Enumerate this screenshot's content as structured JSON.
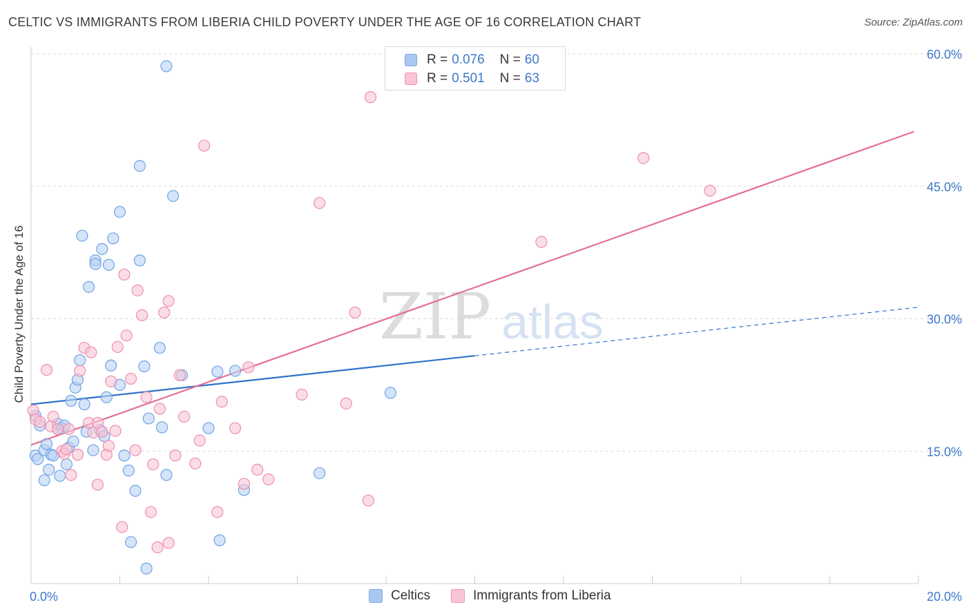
{
  "title": "CELTIC VS IMMIGRANTS FROM LIBERIA CHILD POVERTY UNDER THE AGE OF 16 CORRELATION CHART",
  "source": "Source: ZipAtlas.com",
  "watermark": {
    "part1": "ZIP",
    "part2": "atlas"
  },
  "legend_top": [
    {
      "r_label": "R =",
      "r_value": "0.076",
      "n_label": "N =",
      "n_value": "60",
      "color": "#a9c8f0",
      "border": "#7aaae6"
    },
    {
      "r_label": "R =",
      "r_value": "0.501",
      "n_label": "N =",
      "n_value": "63",
      "color": "#f9c4d4",
      "border": "#ee93b0"
    }
  ],
  "legend_bottom": [
    "Celtics",
    "Immigrants from Liberia"
  ],
  "chart_data": {
    "type": "scatter",
    "xlabel": "",
    "ylabel": "Child Poverty Under the Age of 16",
    "xlim": [
      0,
      20
    ],
    "ylim": [
      0,
      60
    ],
    "x_tick_labels": [
      {
        "value": 0,
        "label": "0.0%"
      },
      {
        "value": 20,
        "label": "20.0%"
      }
    ],
    "y_tick_labels": [
      {
        "value": 15,
        "label": "15.0%"
      },
      {
        "value": 30,
        "label": "30.0%"
      },
      {
        "value": 45,
        "label": "45.0%"
      },
      {
        "value": 60,
        "label": "60.0%"
      }
    ],
    "grid": "horizontal dashed",
    "series": [
      {
        "name": "Celtics",
        "color": "#6fa3e4",
        "fill": "#b9d2f3",
        "trend": {
          "x0": 0,
          "y0": 20.3,
          "x1": 10,
          "y1": 25.8,
          "dashed_to_x": 20,
          "dashed_to_y": 31.3,
          "color": "#2f72cc"
        },
        "points": [
          [
            0.1,
            19.0
          ],
          [
            0.1,
            14.5
          ],
          [
            0.15,
            14.1
          ],
          [
            0.2,
            17.9
          ],
          [
            0.3,
            15.1
          ],
          [
            0.3,
            11.7
          ],
          [
            0.35,
            15.8
          ],
          [
            0.4,
            12.9
          ],
          [
            0.45,
            14.6
          ],
          [
            0.5,
            14.5
          ],
          [
            0.6,
            17.5
          ],
          [
            0.6,
            18.1
          ],
          [
            0.65,
            12.2
          ],
          [
            0.7,
            17.6
          ],
          [
            0.75,
            17.9
          ],
          [
            0.8,
            13.5
          ],
          [
            0.85,
            15.4
          ],
          [
            0.9,
            20.7
          ],
          [
            0.95,
            16.1
          ],
          [
            1.0,
            22.2
          ],
          [
            1.05,
            23.1
          ],
          [
            1.1,
            25.3
          ],
          [
            1.15,
            39.4
          ],
          [
            1.2,
            20.3
          ],
          [
            1.25,
            17.2
          ],
          [
            1.3,
            33.6
          ],
          [
            1.4,
            15.1
          ],
          [
            1.45,
            36.6
          ],
          [
            1.45,
            36.2
          ],
          [
            1.55,
            17.4
          ],
          [
            1.6,
            37.9
          ],
          [
            1.65,
            16.7
          ],
          [
            1.7,
            21.1
          ],
          [
            1.75,
            36.1
          ],
          [
            1.8,
            24.7
          ],
          [
            1.85,
            39.1
          ],
          [
            2.0,
            42.1
          ],
          [
            2.0,
            22.5
          ],
          [
            2.1,
            14.5
          ],
          [
            2.2,
            12.8
          ],
          [
            2.25,
            4.7
          ],
          [
            2.35,
            10.5
          ],
          [
            2.45,
            47.3
          ],
          [
            2.45,
            36.6
          ],
          [
            2.55,
            24.6
          ],
          [
            2.6,
            1.7
          ],
          [
            2.65,
            18.7
          ],
          [
            2.9,
            26.7
          ],
          [
            2.95,
            17.7
          ],
          [
            3.05,
            12.3
          ],
          [
            3.05,
            58.6
          ],
          [
            3.2,
            43.9
          ],
          [
            3.4,
            23.6
          ],
          [
            4.0,
            17.6
          ],
          [
            4.2,
            24.0
          ],
          [
            4.25,
            4.9
          ],
          [
            4.6,
            24.1
          ],
          [
            4.8,
            10.6
          ],
          [
            6.5,
            12.5
          ],
          [
            8.1,
            21.6
          ]
        ]
      },
      {
        "name": "Immigrants from Liberia",
        "color": "#ee8db0",
        "fill": "#f8c6d6",
        "trend": {
          "x0": 0,
          "y0": 15.7,
          "x1": 19.9,
          "y1": 51.2,
          "color": "#e46c96"
        },
        "points": [
          [
            0.05,
            19.6
          ],
          [
            0.1,
            18.6
          ],
          [
            0.2,
            18.3
          ],
          [
            0.35,
            24.2
          ],
          [
            0.45,
            17.8
          ],
          [
            0.5,
            18.9
          ],
          [
            0.6,
            17.5
          ],
          [
            0.7,
            15.0
          ],
          [
            0.75,
            14.7
          ],
          [
            0.85,
            17.5
          ],
          [
            0.9,
            12.3
          ],
          [
            1.05,
            14.6
          ],
          [
            1.1,
            24.1
          ],
          [
            1.2,
            26.7
          ],
          [
            1.3,
            18.2
          ],
          [
            1.35,
            26.2
          ],
          [
            1.4,
            17.1
          ],
          [
            1.5,
            18.2
          ],
          [
            1.5,
            11.2
          ],
          [
            1.6,
            17.2
          ],
          [
            1.7,
            14.6
          ],
          [
            1.75,
            15.6
          ],
          [
            1.8,
            22.9
          ],
          [
            1.9,
            17.3
          ],
          [
            1.95,
            26.8
          ],
          [
            2.05,
            6.4
          ],
          [
            2.1,
            35.0
          ],
          [
            2.15,
            28.1
          ],
          [
            2.25,
            23.2
          ],
          [
            2.35,
            15.1
          ],
          [
            2.4,
            33.2
          ],
          [
            2.5,
            30.4
          ],
          [
            2.6,
            21.1
          ],
          [
            2.7,
            8.1
          ],
          [
            2.75,
            13.5
          ],
          [
            2.85,
            4.1
          ],
          [
            2.9,
            19.8
          ],
          [
            3.0,
            30.7
          ],
          [
            3.1,
            4.6
          ],
          [
            3.1,
            32.0
          ],
          [
            3.25,
            14.5
          ],
          [
            3.35,
            23.6
          ],
          [
            3.45,
            18.9
          ],
          [
            3.7,
            13.6
          ],
          [
            3.8,
            16.2
          ],
          [
            3.9,
            49.6
          ],
          [
            4.2,
            8.1
          ],
          [
            4.3,
            20.6
          ],
          [
            4.6,
            17.6
          ],
          [
            4.8,
            11.3
          ],
          [
            4.9,
            24.5
          ],
          [
            5.1,
            12.9
          ],
          [
            5.35,
            11.8
          ],
          [
            6.1,
            21.4
          ],
          [
            6.5,
            43.1
          ],
          [
            7.1,
            20.4
          ],
          [
            7.3,
            30.7
          ],
          [
            7.6,
            9.4
          ],
          [
            7.65,
            55.1
          ],
          [
            11.5,
            38.7
          ],
          [
            13.8,
            48.2
          ],
          [
            15.3,
            44.5
          ],
          [
            0.8,
            15.2
          ]
        ]
      }
    ]
  }
}
